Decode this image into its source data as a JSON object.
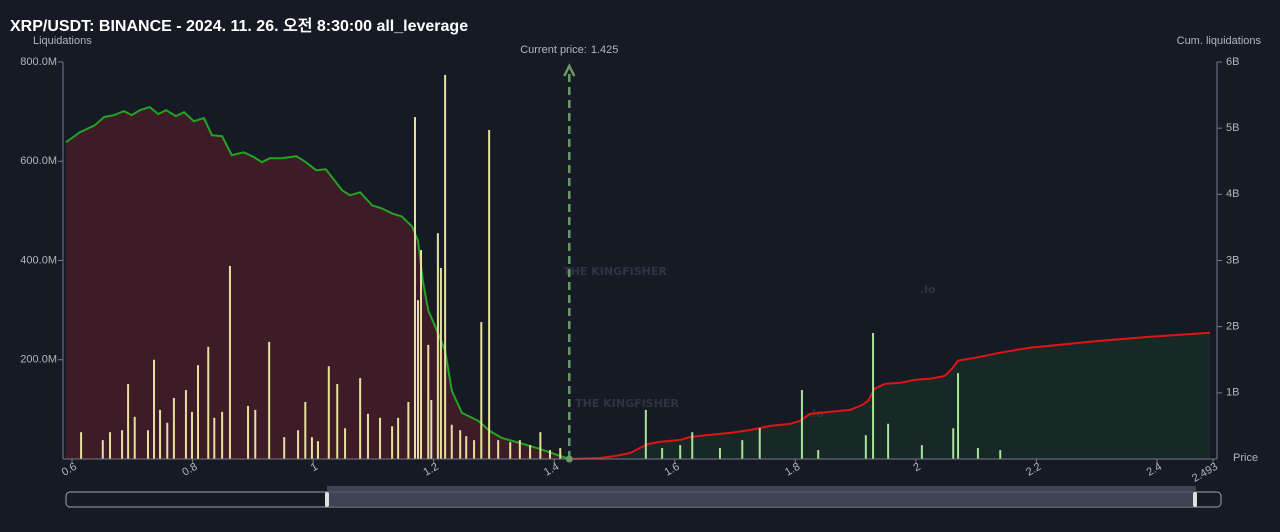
{
  "chart_data": {
    "type": "bar",
    "title": "XRP/USDT: BINANCE - 2024. 11. 26. 오전 8:30:00 all_leverage",
    "ylabel": "Liquidations",
    "y2label": "Cum. liquidations",
    "xlabel": "Price",
    "current_price_label": "Current price:",
    "current_price": 1.425,
    "watermark": "THE KINGFISHER",
    "watermark_suffix": ".io",
    "xlim": [
      0.585,
      2.493
    ],
    "xticks": [
      0.6,
      0.8,
      1,
      1.2,
      1.4,
      1.6,
      1.8,
      2,
      2.2,
      2.4,
      2.493
    ],
    "ylim": [
      0,
      800
    ],
    "yticks": [
      {
        "value": 200,
        "label": "200.0M"
      },
      {
        "value": 400,
        "label": "400.0M"
      },
      {
        "value": 600,
        "label": "600.0M"
      },
      {
        "value": 800,
        "label": "800.0M"
      }
    ],
    "y2lim": [
      0,
      6
    ],
    "y2ticks": [
      {
        "value": 1,
        "label": "1B"
      },
      {
        "value": 2,
        "label": "2B"
      },
      {
        "value": 3,
        "label": "3B"
      },
      {
        "value": 4,
        "label": "4B"
      },
      {
        "value": 5,
        "label": "5B"
      },
      {
        "value": 6,
        "label": "6B"
      }
    ],
    "series": [
      {
        "type": "bar",
        "color": "#e4e19c",
        "x": [
          0.615,
          0.651,
          0.663,
          0.683,
          0.693,
          0.704,
          0.726,
          0.736,
          0.746,
          0.758,
          0.769,
          0.789,
          0.799,
          0.809,
          0.826,
          0.836,
          0.849,
          0.862,
          0.892,
          0.904,
          0.927,
          0.952,
          0.975,
          0.987,
          0.998,
          1.008,
          1.026,
          1.04,
          1.053,
          1.078,
          1.091,
          1.111,
          1.131,
          1.141,
          1.158,
          1.169,
          1.174,
          1.179,
          1.191,
          1.196,
          1.207,
          1.212,
          1.219,
          1.23,
          1.244,
          1.254,
          1.267,
          1.279,
          1.292,
          1.307,
          1.327,
          1.343,
          1.36,
          1.377,
          1.393,
          1.41
        ],
        "values": [
          54,
          38,
          54,
          58,
          151,
          85,
          58,
          200,
          99,
          73,
          123,
          139,
          95,
          189,
          226,
          83,
          95,
          389,
          107,
          99,
          236,
          44,
          58,
          115,
          44,
          36,
          187,
          151,
          62,
          163,
          91,
          83,
          66,
          83,
          115,
          689,
          320,
          421,
          230,
          119,
          455,
          385,
          774,
          69,
          58,
          46,
          38,
          276,
          663,
          38,
          34,
          38,
          28,
          54,
          18,
          22
        ]
      },
      {
        "type": "bar",
        "color": "#a8e39a",
        "x": [
          1.552,
          1.579,
          1.609,
          1.629,
          1.675,
          1.712,
          1.741,
          1.811,
          1.838,
          1.917,
          1.929,
          1.954,
          2.01,
          2.062,
          2.07,
          2.103,
          2.14
        ],
        "values": [
          99,
          22,
          28,
          54,
          22,
          38,
          62,
          139,
          18,
          48,
          254,
          71,
          28,
          62,
          173,
          22,
          18
        ]
      },
      {
        "type": "line",
        "axis": "y2",
        "color": "#23a323",
        "fill": "rgba(110,32,42,0.45)",
        "x": [
          0.59,
          0.613,
          0.638,
          0.653,
          0.67,
          0.686,
          0.699,
          0.713,
          0.729,
          0.743,
          0.756,
          0.772,
          0.786,
          0.802,
          0.819,
          0.832,
          0.849,
          0.865,
          0.885,
          0.902,
          0.915,
          0.928,
          0.948,
          0.972,
          0.988,
          1.005,
          1.021,
          1.048,
          1.061,
          1.078,
          1.098,
          1.114,
          1.131,
          1.147,
          1.164,
          1.174,
          1.182,
          1.191,
          1.202,
          1.219,
          1.23,
          1.247,
          1.274,
          1.293,
          1.313,
          1.343,
          1.376,
          1.41,
          1.425
        ],
        "values": [
          4.788,
          4.939,
          5.045,
          5.167,
          5.197,
          5.258,
          5.197,
          5.273,
          5.318,
          5.212,
          5.273,
          5.182,
          5.242,
          5.106,
          5.152,
          4.894,
          4.879,
          4.591,
          4.636,
          4.561,
          4.485,
          4.545,
          4.545,
          4.576,
          4.485,
          4.364,
          4.379,
          4.061,
          3.985,
          4.03,
          3.833,
          3.788,
          3.712,
          3.667,
          3.515,
          3.303,
          2.697,
          2.242,
          2.015,
          1.636,
          1.03,
          0.697,
          0.576,
          0.424,
          0.318,
          0.242,
          0.152,
          0.045,
          0
        ]
      },
      {
        "type": "line",
        "axis": "y2",
        "color": "#e01414",
        "fill": "rgba(30,70,40,0.35)",
        "x": [
          1.425,
          1.476,
          1.501,
          1.526,
          1.542,
          1.556,
          1.575,
          1.609,
          1.625,
          1.658,
          1.692,
          1.725,
          1.758,
          1.791,
          1.808,
          1.824,
          1.857,
          1.891,
          1.911,
          1.921,
          1.931,
          1.949,
          1.974,
          1.999,
          2.024,
          2.048,
          2.06,
          2.07,
          2.098,
          2.14,
          2.189,
          2.239,
          2.306,
          2.389,
          2.488
        ],
        "values": [
          0,
          0.015,
          0.045,
          0.091,
          0.167,
          0.227,
          0.258,
          0.288,
          0.333,
          0.364,
          0.394,
          0.439,
          0.5,
          0.53,
          0.576,
          0.682,
          0.712,
          0.742,
          0.818,
          0.879,
          1.061,
          1.136,
          1.152,
          1.197,
          1.212,
          1.258,
          1.364,
          1.485,
          1.53,
          1.606,
          1.682,
          1.727,
          1.788,
          1.848,
          1.909
        ]
      }
    ]
  }
}
